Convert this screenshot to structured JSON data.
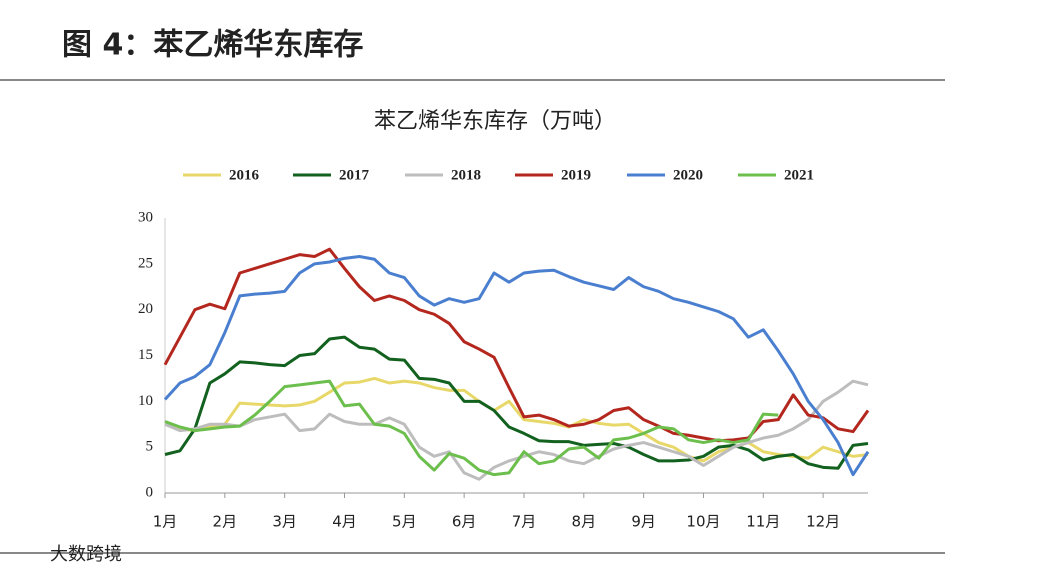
{
  "header": {
    "title": "图 4：苯乙烯华东库存"
  },
  "chart_data": {
    "type": "line",
    "title": "苯乙烯华东库存（万吨）",
    "x": [
      1.0,
      1.25,
      1.5,
      1.75,
      2.0,
      2.25,
      2.5,
      2.75,
      3.0,
      3.25,
      3.5,
      3.75,
      4.0,
      4.25,
      4.5,
      4.75,
      5.0,
      5.25,
      5.5,
      5.75,
      6.0,
      6.25,
      6.5,
      6.75,
      7.0,
      7.25,
      7.5,
      7.75,
      8.0,
      8.25,
      8.5,
      8.75,
      9.0,
      9.25,
      9.5,
      9.75,
      10.0,
      10.25,
      10.5,
      10.75,
      11.0,
      11.25,
      11.5,
      11.75,
      12.0,
      12.25,
      12.5,
      12.75
    ],
    "xlim": [
      1,
      12.75
    ],
    "xticks": [
      {
        "value": 1,
        "label": "1月"
      },
      {
        "value": 2,
        "label": "2月"
      },
      {
        "value": 3,
        "label": "3月"
      },
      {
        "value": 4,
        "label": "4月"
      },
      {
        "value": 5,
        "label": "5月"
      },
      {
        "value": 6,
        "label": "6月"
      },
      {
        "value": 7,
        "label": "7月"
      },
      {
        "value": 8,
        "label": "8月"
      },
      {
        "value": 9,
        "label": "9月"
      },
      {
        "value": 10,
        "label": "10月"
      },
      {
        "value": 11,
        "label": "11月"
      },
      {
        "value": 12,
        "label": "12月"
      }
    ],
    "ylim": [
      0,
      30
    ],
    "yticks": [
      0,
      5,
      10,
      15,
      20,
      25,
      30
    ],
    "grid": false,
    "legend": "top",
    "series": [
      {
        "name": "2016",
        "color": "#e8d86a",
        "values": [
          7.5,
          7,
          6.8,
          7.2,
          7.5,
          9.8,
          9.7,
          9.6,
          9.5,
          9.6,
          10,
          11,
          12,
          12.1,
          12.5,
          12,
          12.2,
          12,
          11.5,
          11.2,
          11.2,
          10,
          9,
          10,
          8,
          7.8,
          7.6,
          7.2,
          8,
          7.6,
          7.4,
          7.5,
          6.5,
          5.5,
          5,
          4,
          3.5,
          4.5,
          5,
          5.5,
          4.5,
          4.2,
          4,
          3.8,
          5,
          4.5,
          4,
          4.2
        ]
      },
      {
        "name": "2017",
        "color": "#12611f",
        "values": [
          4.2,
          4.6,
          7,
          12,
          13,
          14.3,
          14.2,
          14,
          13.9,
          15,
          15.2,
          16.8,
          17,
          15.9,
          15.7,
          14.6,
          14.5,
          12.5,
          12.4,
          12,
          10,
          10,
          9,
          7.2,
          6.5,
          5.7,
          5.6,
          5.6,
          5.2,
          5.3,
          5.4,
          5,
          4.2,
          3.5,
          3.5,
          3.6,
          4,
          5,
          5.2,
          4.7,
          3.6,
          4,
          4.2,
          3.2,
          2.8,
          2.7,
          5.2,
          5.4
        ]
      },
      {
        "name": "2018",
        "color": "#bdbdbd",
        "values": [
          7.5,
          6.8,
          7,
          7.5,
          7.5,
          7.3,
          8,
          8.3,
          8.6,
          6.8,
          7,
          8.6,
          7.8,
          7.5,
          7.5,
          8.2,
          7.5,
          5,
          4,
          4.5,
          2.2,
          1.5,
          2.8,
          3.5,
          4,
          4.5,
          4.2,
          3.5,
          3.2,
          4,
          4.8,
          5.2,
          5.5,
          5,
          4.5,
          4,
          3,
          4,
          5,
          5.5,
          6,
          6.3,
          7,
          8,
          10,
          11,
          12.2,
          11.8
        ]
      },
      {
        "name": "2019",
        "color": "#b3271e",
        "values": [
          14,
          17,
          20,
          20.6,
          20.1,
          24,
          24.5,
          25,
          25.5,
          26,
          25.8,
          26.6,
          24.5,
          22.5,
          21,
          21.5,
          21,
          20,
          19.5,
          18.5,
          16.5,
          15.7,
          14.8,
          11.5,
          8.3,
          8.5,
          8,
          7.3,
          7.5,
          8,
          9,
          9.3,
          8,
          7.3,
          6.5,
          6.3,
          6,
          5.7,
          5.8,
          6,
          7.8,
          8,
          10.7,
          8.5,
          8.2,
          7,
          6.7,
          9
        ]
      },
      {
        "name": "2020",
        "color": "#4a7fd0",
        "values": [
          10.2,
          12,
          12.7,
          14,
          17.5,
          21.5,
          21.7,
          21.8,
          22,
          24,
          25,
          25.2,
          25.6,
          25.8,
          25.5,
          24,
          23.5,
          21.5,
          20.5,
          21.2,
          20.8,
          21.2,
          24,
          23,
          24,
          24.2,
          24.3,
          23.6,
          23,
          22.6,
          22.2,
          23.5,
          22.5,
          22,
          21.2,
          20.8,
          20.3,
          19.8,
          19,
          17,
          17.8,
          15.5,
          13,
          10,
          8,
          5.5,
          2,
          4.5
        ]
      },
      {
        "name": "2021",
        "color": "#6cbf4c",
        "values": [
          7.8,
          7.2,
          6.8,
          7,
          7.2,
          7.3,
          8.5,
          10,
          11.6,
          11.8,
          12,
          12.2,
          9.5,
          9.7,
          7.5,
          7.3,
          6.5,
          4,
          2.5,
          4.3,
          3.8,
          2.5,
          2,
          2.2,
          4.5,
          3.2,
          3.5,
          4.8,
          5,
          3.8,
          5.8,
          6,
          6.5,
          7.2,
          7,
          5.8,
          5.5,
          5.8,
          5.5,
          5.8,
          8.6,
          8.5,
          null,
          null,
          null,
          null,
          null,
          null
        ]
      }
    ]
  },
  "watermark": "大数跨境"
}
